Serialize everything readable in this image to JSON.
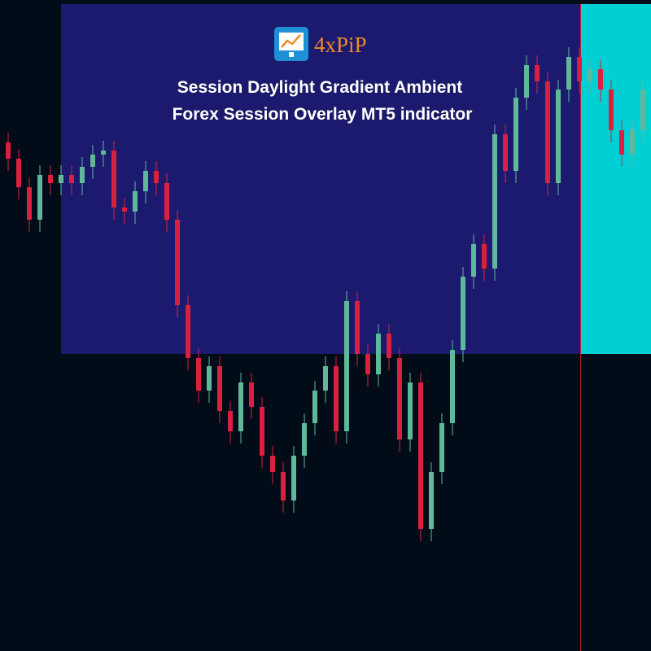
{
  "chart_data": {
    "type": "candlestick",
    "title_lines": [
      "Session Daylight Gradient Ambient",
      "Forex Session Overlay MT5 indicator"
    ],
    "brand": "4xPiP",
    "up_color": "#5fb89a",
    "down_color": "#d9213f",
    "ylim": [
      0,
      800
    ],
    "opens": [
      625,
      605,
      570,
      530,
      585,
      575,
      585,
      575,
      595,
      610,
      615,
      545,
      540,
      565,
      590,
      575,
      530,
      425,
      360,
      320,
      350,
      295,
      270,
      330,
      300,
      240,
      220,
      185,
      240,
      280,
      320,
      350,
      270,
      430,
      365,
      340,
      390,
      360,
      260,
      330,
      150,
      220,
      280,
      370,
      460,
      500,
      470,
      635,
      590,
      680,
      720,
      700,
      575,
      690,
      730,
      700,
      715,
      690,
      640,
      610,
      640
    ],
    "highs": [
      637,
      617,
      582,
      597,
      597,
      597,
      597,
      607,
      622,
      627,
      627,
      557,
      577,
      602,
      602,
      587,
      542,
      437,
      372,
      362,
      362,
      307,
      342,
      342,
      312,
      252,
      232,
      252,
      292,
      332,
      362,
      362,
      442,
      442,
      377,
      402,
      402,
      372,
      342,
      342,
      232,
      292,
      382,
      472,
      512,
      512,
      647,
      647,
      692,
      732,
      732,
      712,
      702,
      742,
      742,
      727,
      727,
      702,
      652,
      652,
      702
    ],
    "lows": [
      590,
      555,
      515,
      515,
      560,
      560,
      560,
      560,
      580,
      595,
      530,
      525,
      525,
      550,
      560,
      515,
      410,
      345,
      305,
      305,
      280,
      255,
      255,
      285,
      225,
      205,
      170,
      170,
      225,
      265,
      305,
      255,
      255,
      350,
      325,
      325,
      345,
      245,
      245,
      135,
      135,
      205,
      265,
      355,
      445,
      455,
      455,
      575,
      575,
      665,
      685,
      560,
      560,
      675,
      685,
      685,
      675,
      625,
      595,
      595,
      625
    ],
    "closes": [
      605,
      570,
      530,
      585,
      575,
      585,
      575,
      595,
      610,
      615,
      545,
      540,
      565,
      590,
      575,
      530,
      425,
      360,
      320,
      350,
      295,
      270,
      330,
      300,
      240,
      220,
      185,
      240,
      280,
      320,
      350,
      270,
      430,
      365,
      340,
      390,
      360,
      260,
      330,
      150,
      220,
      280,
      370,
      460,
      500,
      470,
      635,
      590,
      680,
      720,
      700,
      575,
      690,
      730,
      700,
      715,
      690,
      640,
      610,
      640,
      690
    ]
  }
}
